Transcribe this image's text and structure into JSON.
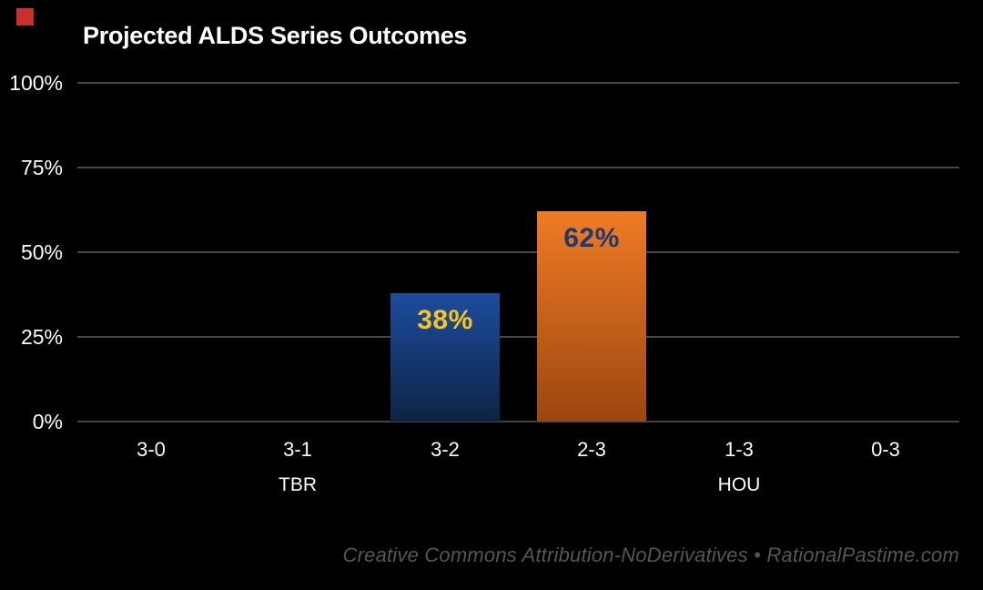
{
  "brand": {
    "mark_color": "#c9302c"
  },
  "chart_data": {
    "type": "bar",
    "title": "Projected ALDS Series Outcomes",
    "categories": [
      "3-0",
      "3-1",
      "3-2",
      "2-3",
      "1-3",
      "0-3"
    ],
    "values": [
      0,
      0,
      38,
      62,
      0,
      0
    ],
    "bar_value_labels": [
      "",
      "",
      "38%",
      "62%",
      "",
      ""
    ],
    "group_labels": [
      {
        "label": "TBR",
        "under_category_index": 1
      },
      {
        "label": "HOU",
        "under_category_index": 4
      }
    ],
    "ytick_labels": [
      "0%",
      "25%",
      "50%",
      "75%",
      "100%"
    ],
    "ylim": [
      0,
      100
    ],
    "grid": "horizontal-only",
    "legend": "none",
    "background": "#000000",
    "colors": {
      "gridline": "#474747",
      "axis_text": "#fafafa",
      "title_text": "#ffffff",
      "bar_3_2_top": "#1d4da0",
      "bar_3_2_bottom": "#0e2342",
      "bar_2_3_top": "#ef7b25",
      "bar_2_3_bottom": "#9c470f",
      "value_label_3_2": "#f8c51d",
      "value_label_2_3": "#1c3a6e",
      "footer_text": "#565656"
    }
  },
  "footer": {
    "text": "Creative Commons Attribution-NoDerivatives • RationalPastime.com"
  }
}
